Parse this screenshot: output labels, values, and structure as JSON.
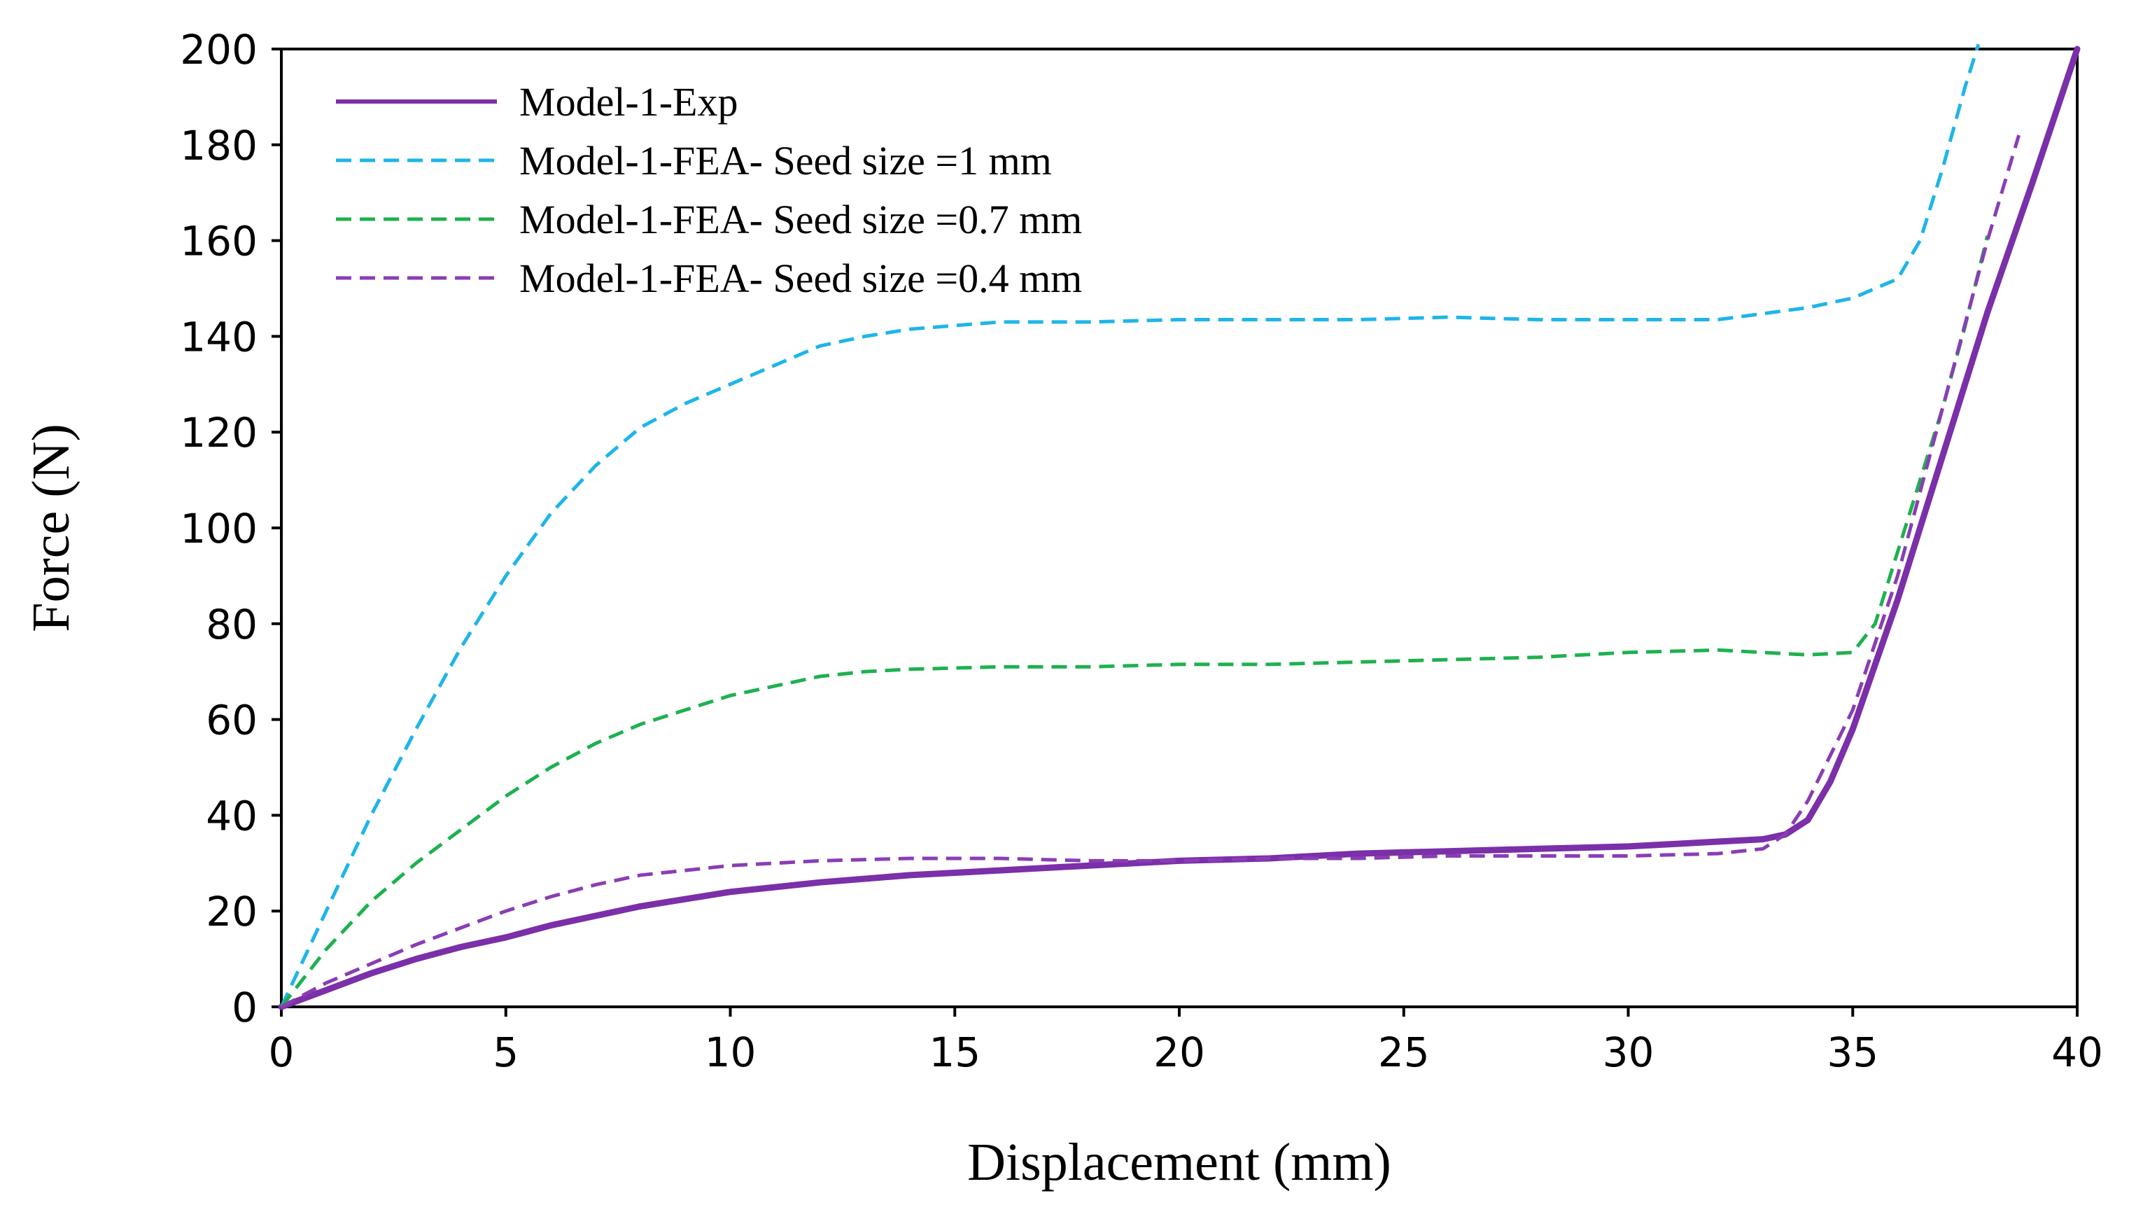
{
  "chart_data": {
    "type": "line",
    "title": "",
    "xlabel": "Displacement (mm)",
    "ylabel": "Force (N)",
    "xlim": [
      0,
      40
    ],
    "ylim": [
      0,
      200
    ],
    "xticks": [
      0,
      5,
      10,
      15,
      20,
      25,
      30,
      35,
      40
    ],
    "yticks": [
      0,
      20,
      40,
      60,
      80,
      100,
      120,
      140,
      160,
      180,
      200
    ],
    "grid": false,
    "legend_position": "top-left",
    "series": [
      {
        "name": "Model-1-Exp",
        "color": "#7B2FA8",
        "dash": "solid",
        "x": [
          0,
          1,
          2,
          3,
          4,
          5,
          6,
          7,
          8,
          9,
          10,
          12,
          14,
          16,
          18,
          20,
          22,
          24,
          26,
          28,
          30,
          32,
          33,
          33.5,
          34,
          34.5,
          35,
          36,
          37,
          38,
          39,
          40
        ],
        "y": [
          0,
          3.5,
          7,
          10,
          12.5,
          14.5,
          17,
          19,
          21,
          22.5,
          24,
          26,
          27.5,
          28.5,
          29.5,
          30.5,
          31,
          32,
          32.5,
          33,
          33.5,
          34.5,
          35,
          36,
          39,
          47,
          58,
          85,
          115,
          145,
          172,
          200
        ]
      },
      {
        "name": "Model-1-FEA- Seed size =1 mm",
        "color": "#1FB5E8",
        "dash": "dashed",
        "x": [
          0,
          1,
          2,
          3,
          4,
          5,
          6,
          7,
          8,
          9,
          10,
          11,
          12,
          13,
          14,
          16,
          18,
          20,
          22,
          24,
          26,
          28,
          30,
          32,
          34,
          35,
          36,
          36.5,
          37,
          37.5,
          37.8
        ],
        "y": [
          0,
          20,
          40,
          58,
          75,
          90,
          103,
          113,
          121,
          126,
          130,
          134,
          138,
          140,
          141.5,
          143,
          143,
          143.5,
          143.5,
          143.5,
          144,
          143.5,
          143.5,
          143.5,
          146,
          148,
          152,
          160,
          175,
          192,
          201
        ]
      },
      {
        "name": "Model-1-FEA- Seed size =0.7 mm",
        "color": "#1EB14F",
        "dash": "dashed",
        "x": [
          0,
          1,
          2,
          3,
          4,
          5,
          6,
          7,
          8,
          9,
          10,
          11,
          12,
          13,
          14,
          16,
          18,
          20,
          22,
          24,
          26,
          28,
          30,
          32,
          34,
          35,
          35.5,
          36,
          36.5,
          37,
          37.5,
          38
        ],
        "y": [
          0,
          12,
          22,
          30,
          37,
          44,
          50,
          55,
          59,
          62,
          65,
          67,
          69,
          70,
          70.5,
          71,
          71,
          71.5,
          71.5,
          72,
          72.5,
          73,
          74,
          74.5,
          73.5,
          74,
          80,
          95,
          110,
          125,
          142,
          161
        ]
      },
      {
        "name": "Model-1-FEA- Seed size =0.4 mm",
        "color": "#8A3DB5",
        "dash": "dashed",
        "x": [
          0,
          1,
          2,
          3,
          4,
          5,
          6,
          7,
          8,
          9,
          10,
          11,
          12,
          14,
          16,
          18,
          20,
          22,
          24,
          26,
          28,
          30,
          32,
          33,
          33.5,
          34,
          35,
          36,
          37,
          38,
          38.7
        ],
        "y": [
          0,
          5,
          9,
          13,
          16.5,
          20,
          23,
          25.5,
          27.5,
          28.5,
          29.5,
          30,
          30.5,
          31,
          31,
          30.5,
          30.5,
          31,
          31,
          31.5,
          31.5,
          31.5,
          32,
          33,
          36,
          43,
          62,
          90,
          125,
          160,
          182
        ]
      }
    ]
  }
}
